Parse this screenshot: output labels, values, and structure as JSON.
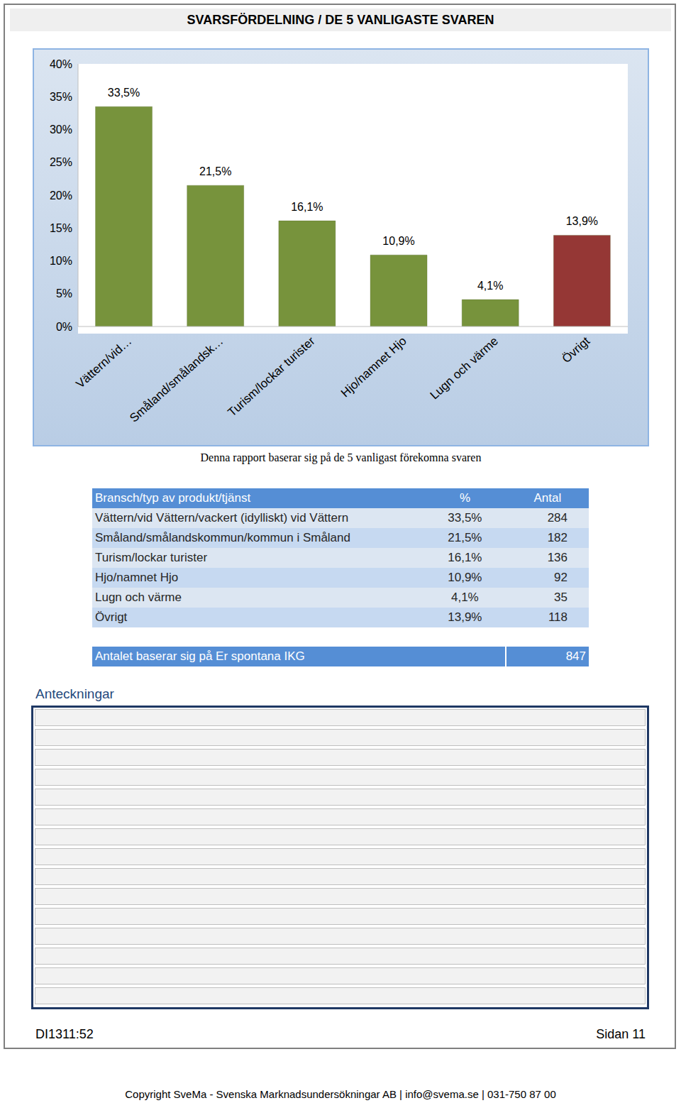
{
  "header": {
    "title": "SVARSFÖRDELNING / DE 5 VANLIGASTE SVAREN"
  },
  "chart_data": {
    "type": "bar",
    "categories": [
      "Vättern/vid…",
      "Småland/smålandsk…",
      "Turism/lockar turister",
      "Hjo/namnet Hjo",
      "Lugn och värme",
      "Övrigt"
    ],
    "values": [
      33.5,
      21.5,
      16.1,
      10.9,
      4.1,
      13.9
    ],
    "value_labels": [
      "33,5%",
      "21,5%",
      "16,1%",
      "10,9%",
      "4,1%",
      "13,9%"
    ],
    "colors": [
      "#77933c",
      "#77933c",
      "#77933c",
      "#77933c",
      "#77933c",
      "#953735"
    ],
    "ylim": [
      0,
      40
    ],
    "yticks": [
      {
        "value": 0,
        "label": "0%"
      },
      {
        "value": 5,
        "label": "5%"
      },
      {
        "value": 10,
        "label": "10%"
      },
      {
        "value": 15,
        "label": "15%"
      },
      {
        "value": 20,
        "label": "20%"
      },
      {
        "value": 25,
        "label": "25%"
      },
      {
        "value": 30,
        "label": "30%"
      },
      {
        "value": 35,
        "label": "35%"
      },
      {
        "value": 40,
        "label": "40%"
      }
    ],
    "grid": false,
    "data_labels": true
  },
  "caption": "Denna rapport baserar sig på de 5 vanligast förekomna svaren",
  "table": {
    "header": [
      "Bransch/typ av produkt/tjänst",
      "%",
      "Antal"
    ],
    "rows": [
      [
        "Vättern/vid Vättern/vackert (idylliskt) vid Vättern",
        "33,5%",
        284
      ],
      [
        "Småland/smålandskommun/kommun i Småland",
        "21,5%",
        182
      ],
      [
        "Turism/lockar turister",
        "16,1%",
        136
      ],
      [
        "Hjo/namnet Hjo",
        "10,9%",
        92
      ],
      [
        "Lugn och värme",
        "4,1%",
        35
      ],
      [
        "Övrigt",
        "13,9%",
        118
      ]
    ]
  },
  "total": {
    "label": "Antalet baserar sig på Er spontana IKG",
    "value": 847
  },
  "notes_title": "Anteckningar",
  "footer": {
    "left": "DI1311:52",
    "right": "Sidan 11",
    "copyright": "Copyright SveMa - Svenska Marknadsundersökningar AB | info@svema.se | 031-750 87 00"
  }
}
